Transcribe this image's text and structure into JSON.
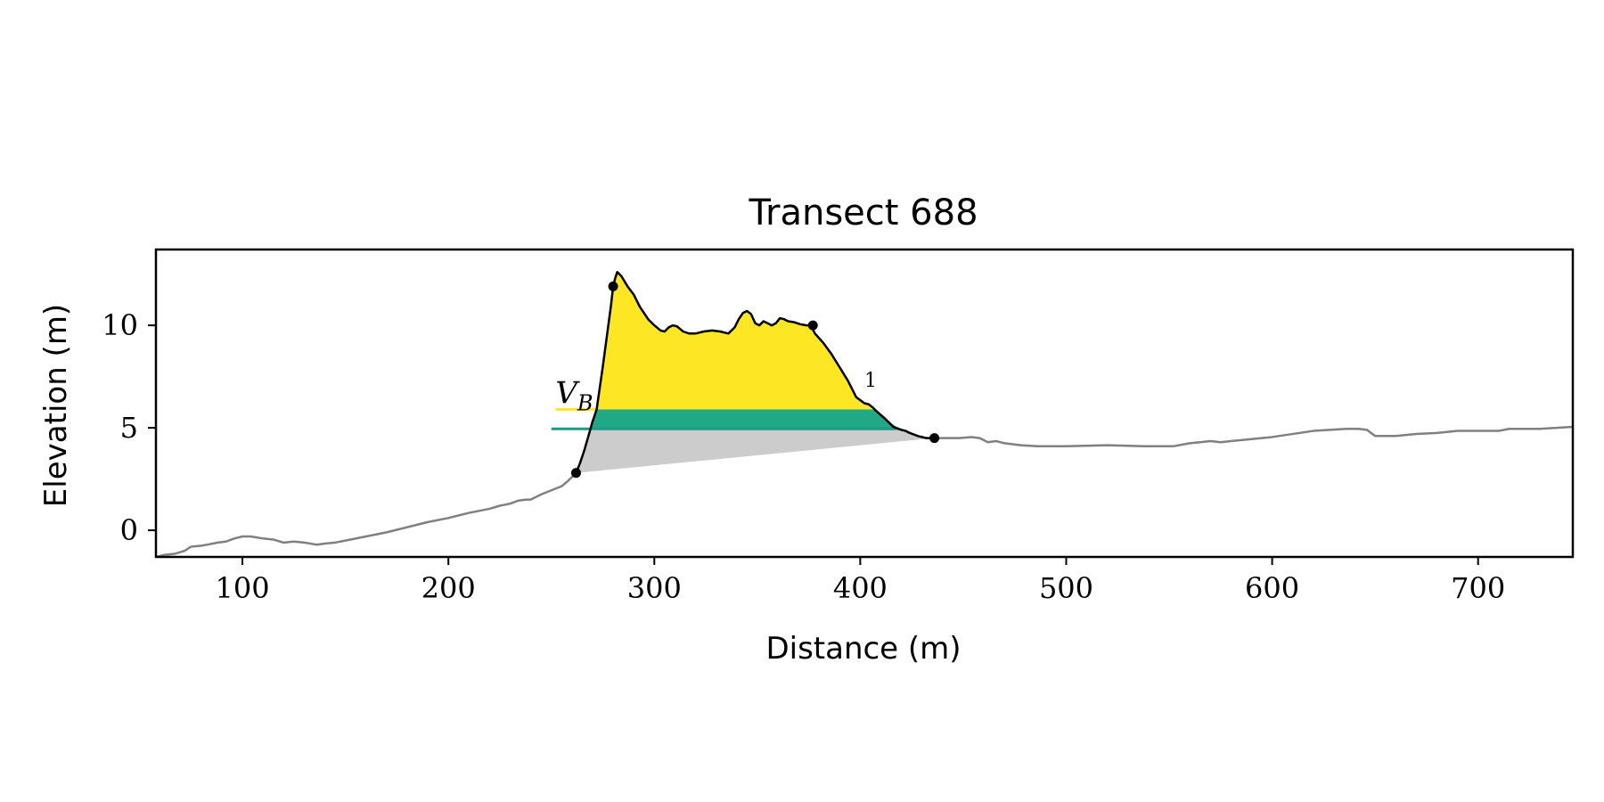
{
  "chart_data": {
    "type": "area",
    "title": "Transect 688",
    "xlabel": "Distance (m)",
    "ylabel": "Elevation (m)",
    "xlim": [
      58,
      746
    ],
    "ylim": [
      -1.3,
      13.7
    ],
    "xticks": [
      100,
      200,
      300,
      400,
      500,
      600,
      700
    ],
    "yticks": [
      0,
      5,
      10
    ],
    "grid": false,
    "legend": "none",
    "colors": {
      "profile": "#808080",
      "dune": "#000000",
      "upper_fill": "#fde725",
      "middle_fill": "#21a884",
      "lower_fill": "#cccccc",
      "line_upper": "#fde725",
      "line_middle": "#1f9a8a"
    },
    "profile": {
      "x": [
        58,
        62,
        67,
        72,
        75,
        80,
        83,
        88,
        92,
        96,
        100,
        104,
        110,
        115,
        120,
        125,
        130,
        136,
        140,
        145,
        150,
        160,
        170,
        180,
        190,
        200,
        210,
        220,
        225,
        230,
        234,
        238,
        240,
        245,
        250,
        255,
        258,
        262,
        436,
        442,
        448,
        454,
        458,
        462,
        466,
        470,
        474,
        478,
        486,
        500,
        520,
        538,
        552,
        560,
        565,
        570,
        575,
        580,
        590,
        600,
        620,
        636,
        642,
        646,
        650,
        660,
        670,
        680,
        690,
        700,
        710,
        715,
        720,
        730,
        746
      ],
      "y": [
        -1.3,
        -1.2,
        -1.15,
        -1.0,
        -0.8,
        -0.75,
        -0.7,
        -0.6,
        -0.55,
        -0.4,
        -0.3,
        -0.3,
        -0.4,
        -0.45,
        -0.6,
        -0.55,
        -0.6,
        -0.7,
        -0.65,
        -0.6,
        -0.5,
        -0.3,
        -0.1,
        0.15,
        0.4,
        0.6,
        0.85,
        1.05,
        1.2,
        1.3,
        1.45,
        1.5,
        1.5,
        1.75,
        1.95,
        2.15,
        2.4,
        2.8,
        4.5,
        4.5,
        4.5,
        4.55,
        4.5,
        4.3,
        4.35,
        4.25,
        4.2,
        4.15,
        4.1,
        4.1,
        4.15,
        4.1,
        4.1,
        4.25,
        4.3,
        4.35,
        4.3,
        4.35,
        4.45,
        4.55,
        4.85,
        4.95,
        4.95,
        4.9,
        4.6,
        4.6,
        4.7,
        4.75,
        4.85,
        4.85,
        4.85,
        4.95,
        4.95,
        4.95,
        5.05
      ]
    },
    "dune": {
      "x": [
        262,
        264,
        266,
        268,
        270,
        272,
        273,
        275,
        277,
        279,
        280,
        281,
        282,
        284,
        287,
        290,
        293,
        297,
        300,
        303,
        305,
        307,
        309,
        311,
        314,
        317,
        320,
        324,
        328,
        332,
        336,
        339,
        341,
        343,
        345,
        347,
        349,
        351,
        353,
        355,
        357,
        359,
        361,
        363,
        365,
        368,
        371,
        374,
        376,
        378,
        382,
        386,
        390,
        394,
        398,
        402,
        404,
        406,
        408,
        412,
        416,
        420,
        422,
        424,
        428,
        432,
        436
      ],
      "y": [
        2.8,
        3.3,
        3.9,
        4.6,
        5.3,
        5.9,
        6.6,
        8.0,
        9.5,
        11.0,
        11.9,
        12.3,
        12.6,
        12.4,
        11.9,
        11.5,
        10.9,
        10.3,
        10.0,
        9.75,
        9.7,
        9.9,
        10.0,
        9.95,
        9.7,
        9.6,
        9.6,
        9.7,
        9.75,
        9.7,
        9.6,
        9.9,
        10.3,
        10.6,
        10.7,
        10.55,
        10.1,
        10.0,
        10.2,
        10.1,
        10.0,
        10.1,
        10.35,
        10.3,
        10.2,
        10.15,
        10.05,
        10.0,
        10.0,
        9.6,
        9.15,
        8.6,
        7.95,
        7.3,
        6.5,
        6.2,
        6.15,
        6.0,
        5.8,
        5.45,
        5.05,
        4.9,
        4.85,
        4.75,
        4.6,
        4.5,
        4.5
      ]
    },
    "dune_points": {
      "x": [
        262,
        280,
        377,
        436
      ],
      "y": [
        2.8,
        11.9,
        10.0,
        4.5
      ]
    },
    "levels": {
      "upper": 5.9,
      "middle": 4.95,
      "upper_line_x": [
        252,
        270
      ],
      "middle_line_x": [
        250,
        270
      ]
    },
    "annotations": [
      {
        "text": "V",
        "sub": "B",
        "x": 252,
        "y": 6.2
      },
      {
        "text": "1",
        "x": 402,
        "y": 7.0
      }
    ]
  }
}
